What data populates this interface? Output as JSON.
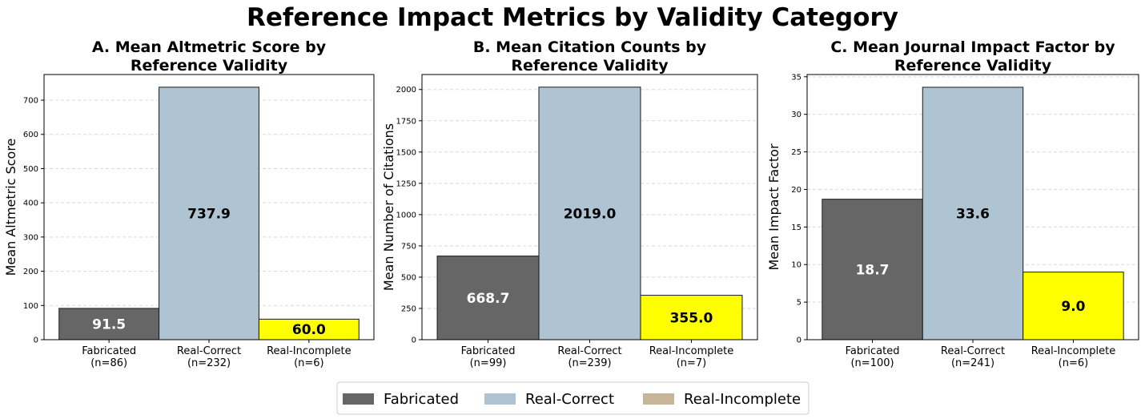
{
  "suptitle": "Reference Impact Metrics by Validity Category",
  "colors": {
    "Fabricated": "#666666",
    "Real-Correct": "#aec4d2",
    "Real-Incomplete": "#ffff00",
    "legend_real_incomplete": "#c8b496"
  },
  "legend": {
    "placement": "bottom-center",
    "items": [
      "Fabricated",
      "Real-Correct",
      "Real-Incomplete"
    ]
  },
  "chart_data": [
    {
      "type": "bar",
      "title": "A. Mean Altmetric Score by\nReference Validity",
      "ylabel": "Mean Altmetric Score",
      "ylim": [
        0,
        775
      ],
      "yticks": [
        0,
        100,
        200,
        300,
        400,
        500,
        600,
        700
      ],
      "grid": true,
      "categories": [
        "Fabricated\n(n=86)",
        "Real-Correct\n(n=232)",
        "Real-Incomplete\n(n=6)"
      ],
      "series_names": [
        "Fabricated",
        "Real-Correct",
        "Real-Incomplete"
      ],
      "values": [
        91.5,
        737.9,
        60.0
      ],
      "labels": [
        "91.5",
        "737.9",
        "60.0"
      ]
    },
    {
      "type": "bar",
      "title": "B. Mean Citation Counts by\nReference Validity",
      "ylabel": "Mean Number of Citations",
      "ylim": [
        0,
        2120
      ],
      "yticks": [
        0,
        250,
        500,
        750,
        1000,
        1250,
        1500,
        1750,
        2000
      ],
      "grid": true,
      "categories": [
        "Fabricated\n(n=99)",
        "Real-Correct\n(n=239)",
        "Real-Incomplete\n(n=7)"
      ],
      "series_names": [
        "Fabricated",
        "Real-Correct",
        "Real-Incomplete"
      ],
      "values": [
        668.7,
        2019.0,
        355.0
      ],
      "labels": [
        "668.7",
        "2019.0",
        "355.0"
      ]
    },
    {
      "type": "bar",
      "title": "C. Mean Journal Impact Factor by\nReference Validity",
      "ylabel": "Mean Impact Factor",
      "ylim": [
        0,
        35.3
      ],
      "yticks": [
        0,
        5,
        10,
        15,
        20,
        25,
        30,
        35
      ],
      "grid": true,
      "categories": [
        "Fabricated\n(n=100)",
        "Real-Correct\n(n=241)",
        "Real-Incomplete\n(n=6)"
      ],
      "series_names": [
        "Fabricated",
        "Real-Correct",
        "Real-Incomplete"
      ],
      "values": [
        18.7,
        33.6,
        9.0
      ],
      "labels": [
        "18.7",
        "33.6",
        "9.0"
      ]
    }
  ]
}
